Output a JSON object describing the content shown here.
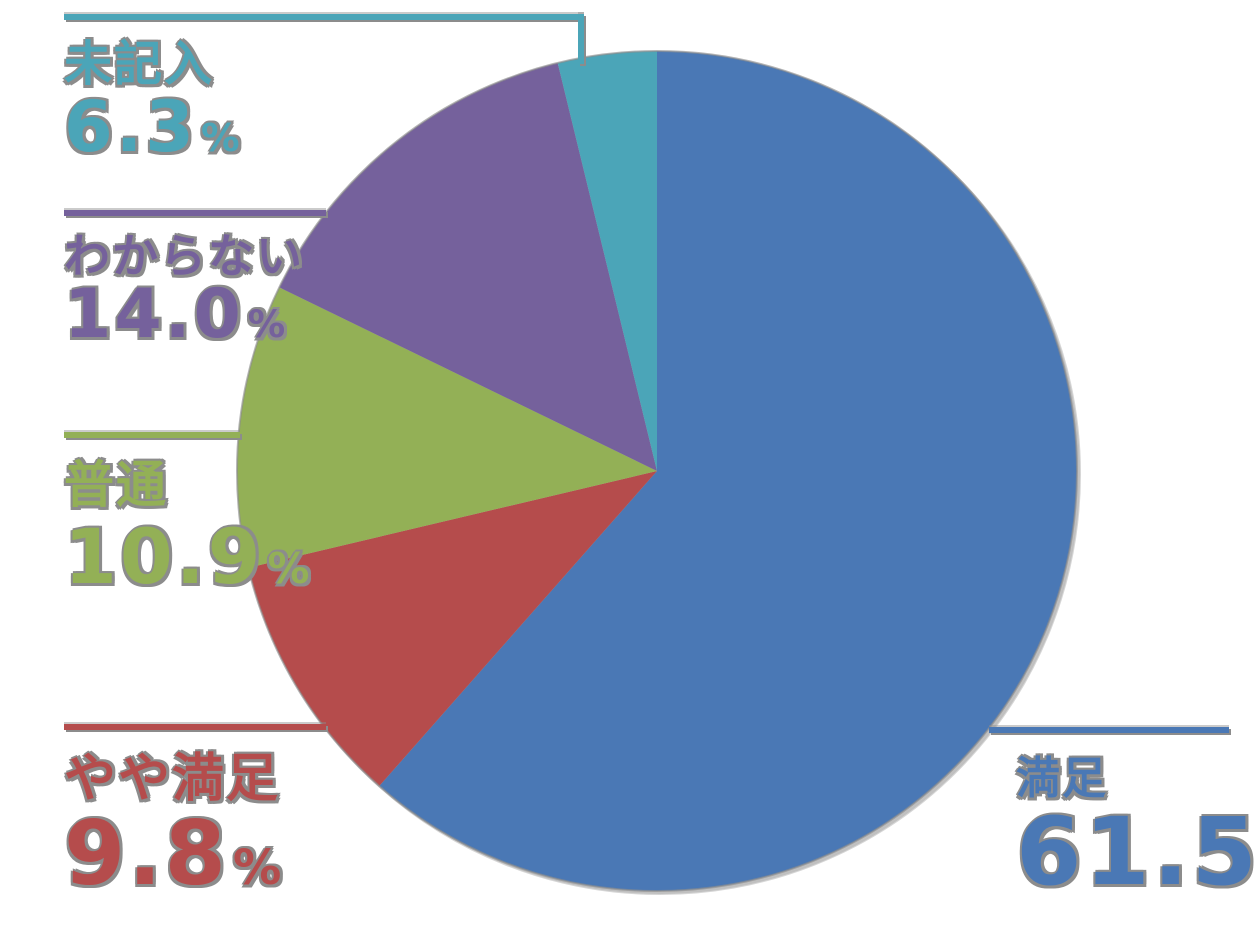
{
  "chart_data": {
    "type": "pie",
    "unit": "%",
    "percent_sign": "%",
    "start_angle": "top",
    "direction": "clockwise",
    "legend_position": "outside-callouts",
    "labels_style": "callout-with-leader-lines",
    "segments": [
      {
        "label": "満足",
        "value": 61.5,
        "display": "61.5",
        "color": "#4A78B5"
      },
      {
        "label": "やや満足",
        "value": 9.8,
        "display": "9.8",
        "color": "#B54C4C"
      },
      {
        "label": "普通",
        "value": 10.9,
        "display": "10.9",
        "color": "#93B056"
      },
      {
        "label": "わからない",
        "value": 14.0,
        "display": "14.0",
        "color": "#75619C"
      },
      {
        "label": "未記入",
        "value": 6.3,
        "display": "6.3",
        "color": "#4BA5B8"
      }
    ],
    "render": {
      "fit_last_segment_to_full_circle": true
    }
  },
  "figure": {
    "background": "#FFFFFF",
    "shadow_color": "#8C8C8C"
  }
}
